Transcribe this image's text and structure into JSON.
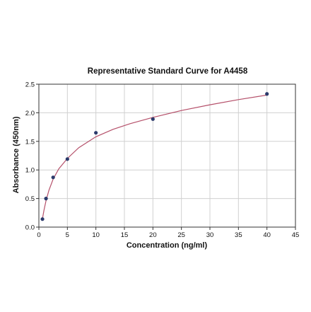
{
  "chart_data": {
    "type": "scatter",
    "title": "Representative Standard Curve for A4458",
    "xlabel": "Concentration (ng/ml)",
    "ylabel": "Absorbance (450nm)",
    "xlim": [
      0,
      45
    ],
    "ylim": [
      0,
      2.5
    ],
    "xticks": [
      0,
      5,
      10,
      15,
      20,
      25,
      30,
      35,
      40,
      45
    ],
    "xtick_labels": [
      "0",
      "5",
      "10",
      "15",
      "20",
      "25",
      "30",
      "35",
      "40",
      "45"
    ],
    "yticks": [
      0,
      0.5,
      1.0,
      1.5,
      2.0,
      2.5
    ],
    "ytick_labels": [
      "0.0",
      "0.5",
      "1.0",
      "1.5",
      "2.0",
      "2.5"
    ],
    "grid": true,
    "series": [
      {
        "kind": "points",
        "color": "#2b3a6b",
        "x": [
          0.625,
          1.25,
          2.5,
          5,
          10,
          20,
          40
        ],
        "y": [
          0.14,
          0.5,
          0.87,
          1.19,
          1.65,
          1.89,
          2.33
        ]
      },
      {
        "kind": "fit-curve",
        "color": "#b5506a",
        "x": [
          0.6,
          0.9,
          1.25,
          1.75,
          2.5,
          3.5,
          5,
          7,
          10,
          13,
          16,
          20,
          25,
          30,
          35,
          40
        ],
        "y": [
          0.13,
          0.3,
          0.46,
          0.64,
          0.84,
          1.02,
          1.2,
          1.39,
          1.58,
          1.71,
          1.81,
          1.92,
          2.04,
          2.14,
          2.23,
          2.31
        ]
      }
    ]
  }
}
